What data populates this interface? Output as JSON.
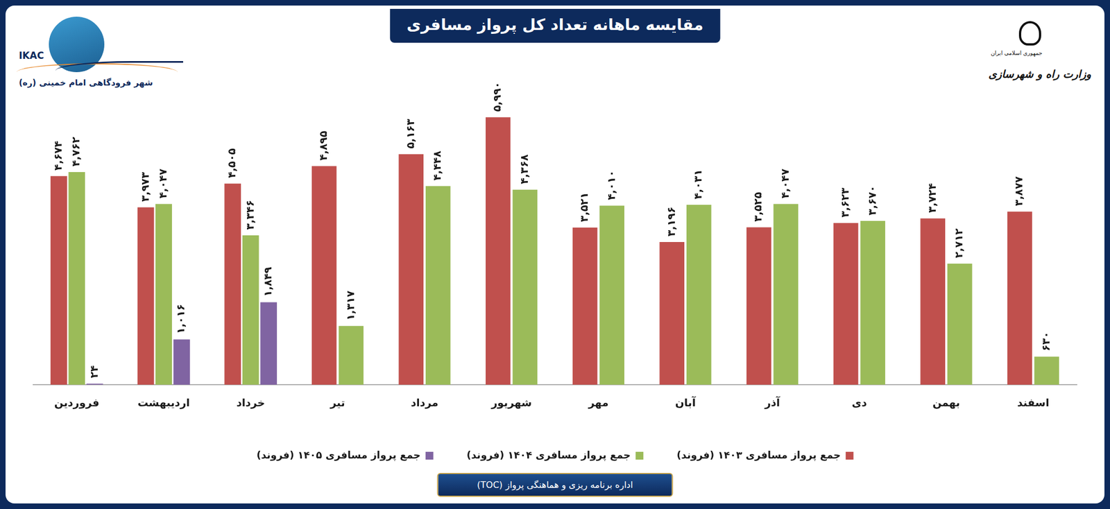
{
  "chart_data": {
    "type": "bar",
    "title": "مقایسه ماهانه تعداد کل پرواز مسافری",
    "annotations": [
      "IKAC",
      "شهر فرودگاهی امام خمینی (ره)",
      "جمهوری اسلامی ایران",
      "وزارت راه و شهرسازی",
      "اداره برنامه ریزی و هماهنگی پرواز (TOC)"
    ],
    "categories": [
      "فروردین",
      "اردیبهشت",
      "خرداد",
      "تیر",
      "مرداد",
      "شهریور",
      "مهر",
      "آبان",
      "آذر",
      "دی",
      "بهمن",
      "اسفند"
    ],
    "series": [
      {
        "name": "جمع پرواز مسافری ۱۴۰۳ (فروند)",
        "color": "#c0504d",
        "values": [
          4674,
          3973,
          4505,
          4895,
          5163,
          5990,
          3521,
          3196,
          3525,
          3623,
          3724,
          3877
        ],
        "value_labels": [
          "۴,۶۷۴",
          "۳,۹۷۳",
          "۴,۵۰۵",
          "۴,۸۹۵",
          "۵,۱۶۳",
          "۵,۹۹۰",
          "۳,۵۲۱",
          "۳,۱۹۶",
          "۳,۵۲۵",
          "۳,۶۲۳",
          "۳,۷۲۴",
          "۳,۸۷۷"
        ]
      },
      {
        "name": "جمع پرواز مسافری ۱۴۰۴ (فروند)",
        "color": "#9bbb59",
        "values": [
          4762,
          4047,
          3346,
          1317,
          4448,
          4368,
          4010,
          4031,
          4047,
          3670,
          2712,
          630
        ],
        "value_labels": [
          "۴,۷۶۲",
          "۴,۰۴۷",
          "۳,۳۴۶",
          "۱,۳۱۷",
          "۴,۴۴۸",
          "۴,۳۶۸",
          "۴,۰۱۰",
          "۴,۰۳۱",
          "۴,۰۴۷",
          "۳,۶۷۰",
          "۲,۷۱۲",
          "۶۳۰"
        ]
      },
      {
        "name": "جمع پرواز مسافری ۱۴۰۵ (فروند)",
        "color": "#8064a2",
        "values": [
          24,
          1016,
          1849,
          null,
          null,
          null,
          null,
          null,
          null,
          null,
          null,
          null
        ],
        "value_labels": [
          "۲۴",
          "۱,۰۱۶",
          "۱,۸۴۹",
          null,
          null,
          null,
          null,
          null,
          null,
          null,
          null,
          null
        ]
      }
    ],
    "ylim": [
      0,
      7000
    ],
    "tick_labels": "x",
    "grid": false,
    "legend": "bottom",
    "data_labels": true
  }
}
